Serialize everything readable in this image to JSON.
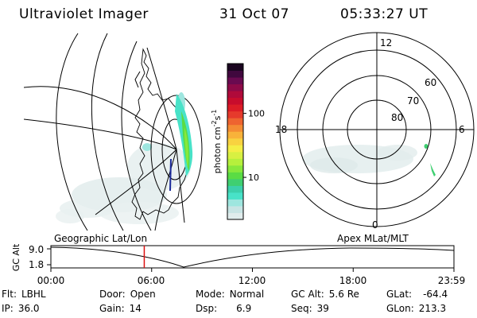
{
  "header": {
    "title": "Ultraviolet Imager",
    "date": "31 Oct 07",
    "time": "05:33:27 UT"
  },
  "colorbar": {
    "ticks": [
      {
        "label": "100",
        "value": 100
      },
      {
        "label": "10",
        "value": 10
      }
    ],
    "label_main": "photon cm",
    "label_sup1": "-2",
    "label_mid": "s",
    "label_sup2": "-1",
    "colors": [
      "#e0ecec",
      "#c8e4e4",
      "#9ee6df",
      "#48e2c8",
      "#3cd0ac",
      "#3fcf71",
      "#5adc44",
      "#88e83c",
      "#b6f03c",
      "#d8f042",
      "#f4ee46",
      "#f8d240",
      "#f8b23a",
      "#f48c34",
      "#ee6430",
      "#e63a2c",
      "#dc1c26",
      "#c80c2c",
      "#b00a3a",
      "#8e0a48",
      "#6a0a50",
      "#40083e",
      "#1a0520"
    ]
  },
  "polar": {
    "labels": {
      "top": "12",
      "bottom": "0",
      "left": "18",
      "right": "6",
      "lat60": "60",
      "lat70": "70",
      "lat80": "80"
    }
  },
  "timeline": {
    "left_label": "Geographic Lat/Lon",
    "right_label": "Apex  MLat/MLT",
    "axis_title": "GC Alt",
    "ymax": "9.0",
    "ymin": "1.8",
    "ticks": [
      "00:00",
      "06:00",
      "12:00",
      "18:00",
      "23:59"
    ],
    "current_time_hours": 5.56,
    "marker_color": "#dd1111"
  },
  "info": {
    "flt_label": "Flt:",
    "flt_value": "LBHL",
    "ip_label": "IP:",
    "ip_value": "36.0",
    "door_label": "Door:",
    "door_value": "Open",
    "gain_label": "Gain:",
    "gain_value": "14",
    "mode_label": "Mode:",
    "mode_value": "Normal",
    "dsp_label": "Dsp:",
    "dsp_value": "6.9",
    "gcalt_label": "GC Alt:",
    "gcalt_value": "5.6 Re",
    "seq_label": "Seq:",
    "seq_value": "39",
    "glat_label": "GLat:",
    "glat_value": "-64.4",
    "glon_label": "GLon:",
    "glon_value": "213.3"
  }
}
